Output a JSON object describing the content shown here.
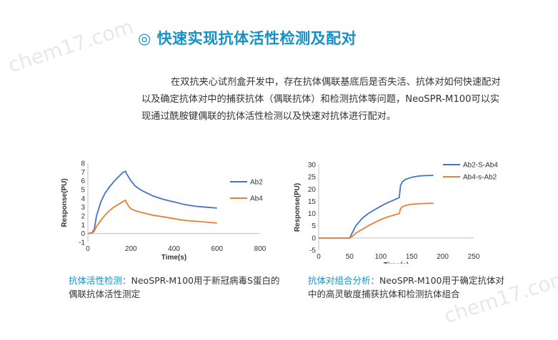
{
  "heading": {
    "symbol": "◎",
    "text": "快速实现抗体活性检测及配对"
  },
  "intro": "在双抗夹心试剂盒开发中，存在抗体偶联基底后是否失活、抗体对如何快速配对以及确定抗体对中的捕获抗体（偶联抗体）和检测抗体等问题，NeoSPR-M100可以实现通过酰胺键偶联的抗体活性检测以及快速对抗体进行配对。",
  "watermark": "chem17.com",
  "captions": {
    "left_highlight": "抗体活性检测：",
    "left_text": "NeoSPR-M100用于新冠病毒S蛋白的偶联抗体活性测定",
    "right_highlight": "抗体对组合分析：",
    "right_text": "NeoSPR-M100用于确定抗体对中的高灵敏度捕获抗体和检测抗体组合"
  },
  "chart_data": [
    {
      "type": "line",
      "xlabel": "Time(s)",
      "ylabel": "Response(PU)",
      "xlim": [
        0,
        800
      ],
      "ylim": [
        -1,
        8
      ],
      "xticks": [
        0,
        200,
        400,
        600,
        800
      ],
      "yticks": [
        -1,
        0,
        1,
        2,
        3,
        4,
        5,
        6,
        7,
        8
      ],
      "legend_position": "right",
      "series": [
        {
          "name": "Ab2",
          "color": "#4472c4",
          "x": [
            0,
            20,
            30,
            40,
            60,
            80,
            100,
            120,
            140,
            160,
            175,
            180,
            190,
            200,
            220,
            250,
            300,
            350,
            400,
            450,
            500,
            550,
            600
          ],
          "y": [
            0,
            0.1,
            0.5,
            2.0,
            3.6,
            4.6,
            5.3,
            5.9,
            6.4,
            6.9,
            7.1,
            6.8,
            6.4,
            6.0,
            5.4,
            4.9,
            4.3,
            3.9,
            3.6,
            3.3,
            3.1,
            3.0,
            2.9
          ]
        },
        {
          "name": "Ab4",
          "color": "#ed7d31",
          "x": [
            0,
            20,
            30,
            40,
            60,
            80,
            100,
            120,
            140,
            160,
            175,
            180,
            190,
            200,
            220,
            250,
            300,
            350,
            400,
            450,
            500,
            550,
            600
          ],
          "y": [
            0,
            0.05,
            0.3,
            0.8,
            1.5,
            2.1,
            2.6,
            3.0,
            3.3,
            3.6,
            3.8,
            3.5,
            3.1,
            2.8,
            2.6,
            2.4,
            2.1,
            1.9,
            1.7,
            1.5,
            1.4,
            1.3,
            1.2
          ]
        }
      ]
    },
    {
      "type": "line",
      "xlabel": "Time(s)",
      "ylabel": "Response(PU)",
      "xlim": [
        0,
        250
      ],
      "ylim": [
        -5,
        30
      ],
      "xticks": [
        0,
        50,
        100,
        150,
        200,
        250
      ],
      "yticks": [
        -5,
        0,
        5,
        10,
        15,
        20,
        25,
        30
      ],
      "legend_position": "top-right",
      "series": [
        {
          "name": "Ab2-S-Ab4",
          "color": "#4472c4",
          "x": [
            0,
            20,
            40,
            50,
            55,
            60,
            70,
            80,
            90,
            100,
            110,
            120,
            130,
            132,
            135,
            140,
            150,
            160,
            170,
            185
          ],
          "y": [
            0,
            0,
            0,
            0,
            2.5,
            5,
            8,
            10,
            11.5,
            13,
            14.3,
            15.4,
            16.5,
            21.5,
            23,
            24,
            24.8,
            25.3,
            25.5,
            25.6
          ]
        },
        {
          "name": "Ab4-s-Ab2",
          "color": "#ed7d31",
          "x": [
            0,
            20,
            40,
            50,
            55,
            60,
            70,
            80,
            90,
            100,
            110,
            120,
            130,
            132,
            135,
            140,
            150,
            160,
            170,
            185
          ],
          "y": [
            0,
            0,
            0,
            0,
            0.8,
            2,
            3.5,
            5,
            6.3,
            7.5,
            8.5,
            9.3,
            10,
            12,
            12.8,
            13.3,
            13.8,
            14,
            14.1,
            14.2
          ]
        }
      ]
    }
  ]
}
